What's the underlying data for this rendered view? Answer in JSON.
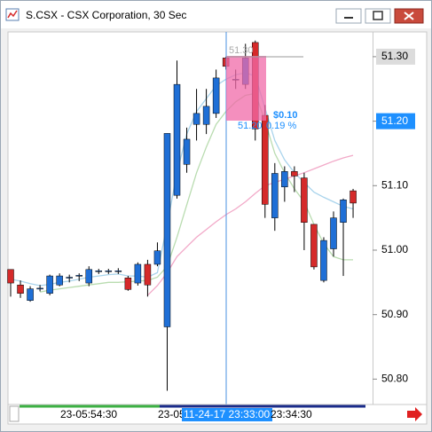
{
  "window": {
    "title": "S.CSX - CSX Corporation, 30 Sec"
  },
  "chart_data": {
    "type": "candlestick",
    "categories": [
      null,
      null,
      null,
      null,
      null,
      null,
      null,
      null,
      null,
      null,
      null,
      null,
      null,
      null,
      null,
      null,
      null,
      null,
      null,
      null,
      null,
      null,
      null,
      null,
      null,
      null,
      null,
      null,
      null,
      null,
      null,
      null,
      null,
      null,
      null,
      null
    ],
    "open": [
      50.97,
      50.946,
      50.922,
      50.94,
      50.933,
      50.946,
      50.957,
      50.96,
      50.949,
      50.967,
      50.967,
      50.967,
      50.957,
      50.949,
      50.978,
      50.978,
      50.881,
      51.085,
      51.133,
      51.195,
      51.195,
      51.212,
      51.298,
      51.264,
      51.257,
      51.322,
      51.209,
      51.05,
      51.098,
      51.122,
      51.112,
      51.04,
      50.953,
      51.002,
      51.043,
      51.092
    ],
    "high": [
      50.97,
      50.953,
      50.944,
      50.946,
      50.962,
      50.964,
      50.962,
      50.964,
      50.975,
      50.971,
      50.971,
      50.972,
      50.96,
      50.981,
      50.985,
      51.012,
      51.181,
      51.294,
      51.19,
      51.25,
      51.25,
      51.28,
      51.3,
      51.28,
      51.32,
      51.325,
      51.225,
      51.135,
      51.13,
      51.13,
      51.12,
      51.04,
      51.02,
      51.06,
      51.08,
      51.095
    ],
    "low": [
      50.928,
      50.926,
      50.92,
      50.936,
      50.93,
      50.944,
      50.95,
      50.952,
      50.944,
      50.963,
      50.963,
      50.963,
      50.937,
      50.945,
      50.928,
      50.975,
      50.782,
      51.08,
      51.12,
      51.17,
      51.18,
      51.205,
      51.28,
      51.25,
      51.25,
      51.17,
      51.05,
      51.03,
      51.075,
      51.09,
      51.0,
      50.97,
      50.95,
      50.99,
      50.96,
      51.05
    ],
    "close": [
      50.949,
      50.933,
      50.94,
      50.941,
      50.96,
      50.96,
      50.958,
      50.961,
      50.97,
      50.968,
      50.968,
      50.968,
      50.939,
      50.978,
      50.946,
      50.999,
      51.181,
      51.257,
      51.172,
      51.212,
      51.223,
      51.267,
      51.285,
      51.265,
      51.298,
      51.188,
      51.071,
      51.119,
      51.122,
      51.115,
      51.043,
      50.974,
      51.015,
      51.05,
      51.078,
      51.073
    ],
    "up_color": "#1f6fd6",
    "down_color": "#d52a2a",
    "lines": [
      {
        "color": "#a9d4ec",
        "values": [
          50.955,
          50.952,
          50.948,
          50.945,
          50.947,
          50.95,
          50.952,
          50.955,
          50.958,
          50.96,
          50.962,
          50.963,
          50.96,
          50.96,
          50.958,
          50.965,
          51.04,
          51.12,
          51.18,
          51.215,
          51.235,
          51.255,
          51.265,
          51.272,
          51.275,
          51.27,
          51.22,
          51.17,
          51.14,
          51.12,
          51.105,
          51.09,
          51.082,
          51.075,
          51.068,
          51.064
        ]
      },
      {
        "color": "#b9dcb0",
        "values": [
          null,
          null,
          null,
          50.935,
          50.938,
          50.94,
          50.942,
          50.944,
          50.946,
          50.948,
          50.95,
          50.95,
          50.951,
          50.952,
          50.953,
          50.958,
          50.975,
          51.02,
          51.07,
          51.12,
          51.16,
          51.195,
          51.215,
          51.23,
          51.24,
          51.243,
          51.2,
          51.15,
          51.12,
          51.095,
          51.075,
          51.04,
          51.01,
          50.99,
          50.985,
          50.985
        ]
      },
      {
        "color": "#f2a9c8",
        "values": [
          null,
          null,
          null,
          null,
          null,
          null,
          null,
          null,
          null,
          null,
          null,
          null,
          null,
          null,
          50.93,
          50.945,
          50.965,
          50.99,
          51.005,
          51.02,
          51.032,
          51.044,
          51.055,
          51.064,
          51.075,
          51.088,
          51.1,
          51.105,
          51.11,
          51.115,
          51.12,
          51.126,
          51.132,
          51.138,
          51.143,
          51.147
        ]
      }
    ],
    "ylim": [
      50.762,
      51.337
    ],
    "yticks": [
      {
        "value": 50.8,
        "label": "50.80"
      },
      {
        "value": 50.9,
        "label": "50.90"
      },
      {
        "value": 51.0,
        "label": "51.00"
      },
      {
        "value": 51.1,
        "label": "51.10"
      },
      {
        "value": 51.2,
        "label": "51.20"
      },
      {
        "value": 51.3,
        "label": "51.30"
      }
    ],
    "time_labels": [
      "23-05:54:30",
      "23-05",
      "11-24-17 23:33:00",
      "23:34:30"
    ],
    "annotations": {
      "ruler_top": "51.30",
      "ruler_change": "$0.10",
      "ruler_bottom": "51.20",
      "ruler_percent": "0.19 %"
    }
  }
}
